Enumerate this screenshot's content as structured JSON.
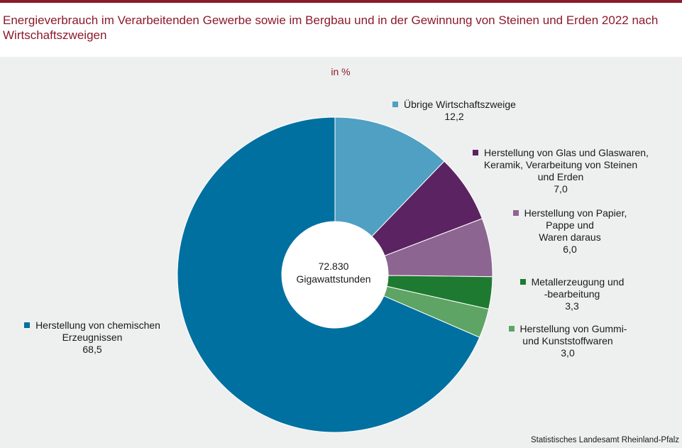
{
  "title": "Energieverbrauch im Verarbeitenden Gewerbe sowie im Bergbau und in der Gewinnung von Steinen und Erden 2022 nach Wirtschaftszweigen",
  "source": "Statistisches Landesamt Rheinland-Pfalz",
  "colors": {
    "brand": "#8b1a2b",
    "panel": "#eef0ef"
  },
  "chart_data": {
    "type": "pie",
    "unit": "in %",
    "center_label": {
      "value": "72.830",
      "unit": "Gigawattstunden"
    },
    "slices": [
      {
        "label_lines": [
          "Übrige Wirtschaftszweige"
        ],
        "value": 12.2,
        "value_label": "12,2",
        "color": "#4fa0c2"
      },
      {
        "label_lines": [
          "Herstellung von Glas und Glaswaren,",
          "Keramik, Verarbeitung von Steinen",
          "und Erden"
        ],
        "value": 7.0,
        "value_label": "7,0",
        "color": "#5c2362"
      },
      {
        "label_lines": [
          "Herstellung von Papier,",
          "Pappe und",
          "Waren daraus"
        ],
        "value": 6.0,
        "value_label": "6,0",
        "color": "#8c6691"
      },
      {
        "label_lines": [
          "Metallerzeugung und",
          "-bearbeitung"
        ],
        "value": 3.3,
        "value_label": "3,3",
        "color": "#1e7a30"
      },
      {
        "label_lines": [
          "Herstellung von Gummi-",
          "und Kunststoffwaren"
        ],
        "value": 3.0,
        "value_label": "3,0",
        "color": "#5ea465"
      },
      {
        "label_lines": [
          "Herstellung von chemischen",
          "Erzeugnissen"
        ],
        "value": 68.5,
        "value_label": "68,5",
        "color": "#0070a1"
      }
    ]
  }
}
